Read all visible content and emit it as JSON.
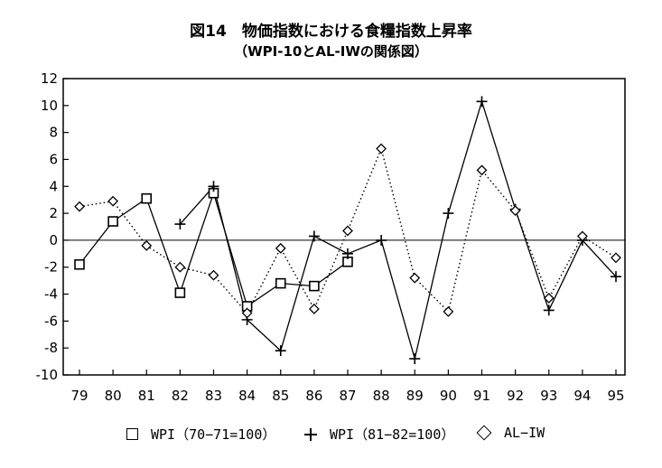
{
  "chart_data": {
    "type": "line",
    "title": "図14　物価指数における食糧指数上昇率",
    "subtitle": "（WPI-10とAL-IWの関係図）",
    "x": [
      "79",
      "80",
      "81",
      "82",
      "83",
      "84",
      "85",
      "86",
      "87",
      "88",
      "89",
      "90",
      "91",
      "92",
      "93",
      "94",
      "95"
    ],
    "ylim": [
      -10,
      12
    ],
    "yticks": [
      12,
      10,
      8,
      6,
      4,
      2,
      0,
      -2,
      -4,
      -6,
      -8,
      -10
    ],
    "grid": false,
    "legend_position": "bottom",
    "series": [
      {
        "name": "WPI（70−71=100）",
        "marker": "square",
        "line": "solid",
        "values": [
          -1.8,
          1.4,
          3.1,
          -3.9,
          3.5,
          -4.9,
          -3.2,
          -3.4,
          -1.6,
          null,
          null,
          null,
          null,
          null,
          null,
          null,
          null
        ]
      },
      {
        "name": "WPI（81−82=100）",
        "marker": "plus",
        "line": "solid",
        "values": [
          null,
          null,
          null,
          1.2,
          4.0,
          -5.9,
          -8.2,
          0.3,
          -1.0,
          0.0,
          -8.8,
          2.0,
          10.3,
          2.3,
          -5.2,
          0.0,
          -2.7
        ]
      },
      {
        "name": "AL−IW",
        "marker": "diamond",
        "line": "dotted",
        "values": [
          2.5,
          2.9,
          -0.4,
          -2.0,
          -2.6,
          -5.4,
          -0.6,
          -5.1,
          0.7,
          6.8,
          -2.8,
          -5.3,
          5.2,
          2.2,
          -4.3,
          0.3,
          -1.3
        ]
      }
    ]
  }
}
